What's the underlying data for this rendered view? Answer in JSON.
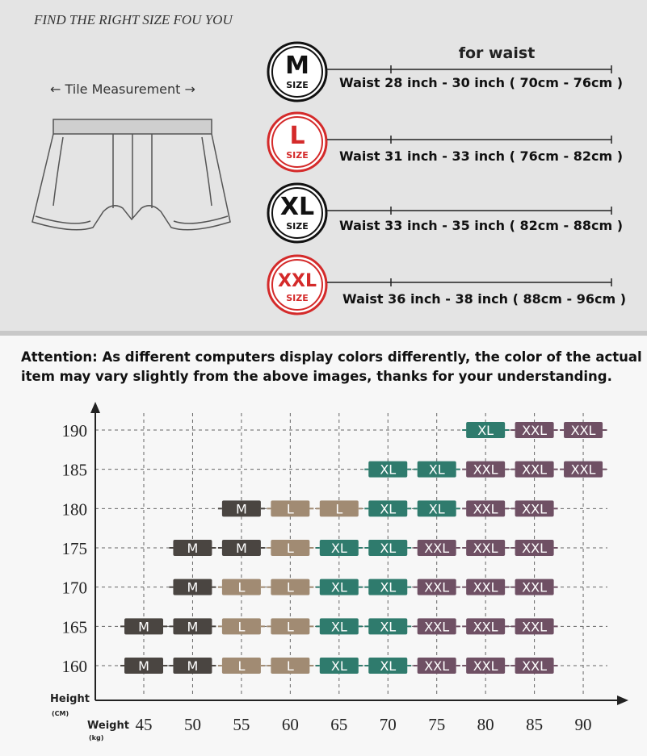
{
  "header": {
    "title": "FIND THE RIGHT SIZE FOU YOU",
    "measurement": "← Tile Measurement →",
    "for_waist": "for  waist"
  },
  "sizes": {
    "size_word": "SIZE",
    "items": [
      {
        "label": "M",
        "waist": "Waist 28 inch - 30 inch  ( 70cm - 76cm )",
        "badge_color": "#111111"
      },
      {
        "label": "L",
        "waist": "Waist  31 inch  - 33 inch  ( 76cm - 82cm )",
        "badge_color": "#d42a2a"
      },
      {
        "label": "XL",
        "waist": "Waist  33 inch - 35 inch  ( 82cm - 88cm )",
        "badge_color": "#111111"
      },
      {
        "label": "XXL",
        "waist": "Waist  36 inch - 38 inch  ( 88cm - 96cm )",
        "badge_color": "#d42a2a"
      }
    ]
  },
  "attention": "Attention: As different computers display colors differently, the color of the actual item may vary slightly from the above images, thanks for your understanding.",
  "grid": {
    "y_label": "Height",
    "y_unit": "(CM)",
    "x_label": "Weight",
    "x_unit": "(kg)",
    "weights": [
      "45",
      "50",
      "55",
      "60",
      "65",
      "70",
      "75",
      "80",
      "85",
      "90"
    ],
    "colors": {
      "M": "#4a4541",
      "L": "#a18b73",
      "XL": "#2f7b6d",
      "XXL": "#6f5064"
    },
    "rows": [
      {
        "height": "190",
        "cells": [
          null,
          null,
          null,
          null,
          null,
          null,
          null,
          "XL",
          "XXL",
          "XXL"
        ]
      },
      {
        "height": "185",
        "cells": [
          null,
          null,
          null,
          null,
          null,
          "XL",
          "XL",
          "XXL",
          "XXL",
          "XXL"
        ]
      },
      {
        "height": "180",
        "cells": [
          null,
          null,
          "M",
          "L",
          "L",
          "XL",
          "XL",
          "XXL",
          "XXL",
          null
        ]
      },
      {
        "height": "175",
        "cells": [
          null,
          "M",
          "M",
          "L",
          "XL",
          "XL",
          "XXL",
          "XXL",
          "XXL",
          null
        ]
      },
      {
        "height": "170",
        "cells": [
          null,
          "M",
          "L",
          "L",
          "XL",
          "XL",
          "XXL",
          "XXL",
          "XXL",
          null
        ]
      },
      {
        "height": "165",
        "cells": [
          "M",
          "M",
          "L",
          "L",
          "XL",
          "XL",
          "XXL",
          "XXL",
          "XXL",
          null
        ]
      },
      {
        "height": "160",
        "cells": [
          "M",
          "M",
          "L",
          "L",
          "XL",
          "XL",
          "XXL",
          "XXL",
          "XXL",
          null
        ]
      }
    ]
  }
}
